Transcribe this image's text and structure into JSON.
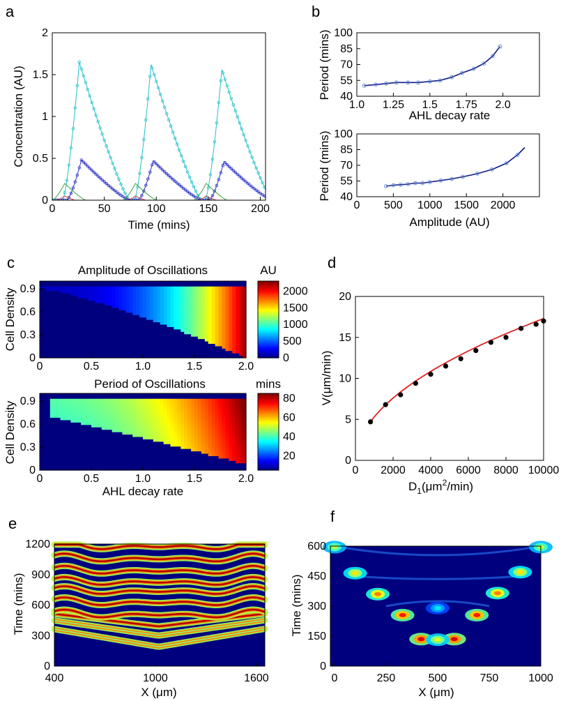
{
  "panels": {
    "a": {
      "letter": "a",
      "chart_data": {
        "type": "line",
        "xlabel": "Time (mins)",
        "ylabel": "Concentration (AU)",
        "xlim": [
          0,
          205
        ],
        "ylim": [
          0,
          2
        ],
        "xticks": [
          "0",
          "50",
          "100",
          "150",
          "200"
        ],
        "yticks": [
          "0",
          "0.5",
          "1",
          "1.5",
          "2"
        ],
        "series": [
          {
            "name": "cyan",
            "color": "#22c0c8",
            "peaks": [
              [
                26,
                1.65
              ],
              [
                95,
                1.62
              ],
              [
                163,
                1.56
              ]
            ]
          },
          {
            "name": "blue",
            "color": "#2830c8",
            "peaks": [
              [
                28,
                0.48
              ],
              [
                97,
                0.47
              ],
              [
                165,
                0.46
              ]
            ]
          },
          {
            "name": "green",
            "color": "#3aa040",
            "peaks": [
              [
                12,
                0.2
              ],
              [
                80,
                0.2
              ],
              [
                148,
                0.2
              ]
            ]
          },
          {
            "name": "red",
            "color": "#d04040",
            "peaks": [
              [
                12,
                0.05
              ],
              [
                80,
                0.05
              ],
              [
                148,
                0.05
              ]
            ]
          }
        ]
      }
    },
    "b": {
      "letter": "b",
      "top": {
        "chart_data": {
          "type": "line",
          "xlabel": "AHL decay rate",
          "ylabel": "Period (mins)",
          "xlim": [
            1.0,
            2.25
          ],
          "ylim": [
            40,
            100
          ],
          "xticks": [
            "1.0",
            "1.25",
            "1.5",
            "1.75",
            "2.0"
          ],
          "yticks": [
            "40",
            "55",
            "70",
            "85",
            "100"
          ],
          "x": [
            1.05,
            1.13,
            1.2,
            1.27,
            1.35,
            1.42,
            1.5,
            1.57,
            1.65,
            1.72,
            1.8,
            1.87,
            1.93,
            1.98
          ],
          "y": [
            50,
            51,
            52,
            53,
            53,
            53,
            54,
            55,
            58,
            62,
            66,
            71,
            78,
            87
          ]
        }
      },
      "bottom": {
        "chart_data": {
          "type": "line",
          "xlabel": "Amplitude (AU)",
          "ylabel": "Period (mins)",
          "xlim": [
            0,
            2500
          ],
          "ylim": [
            40,
            100
          ],
          "xticks": [
            "0",
            "500",
            "1000",
            "1500",
            "2000"
          ],
          "yticks": [
            "40",
            "55",
            "70",
            "85",
            "100"
          ],
          "x": [
            400,
            500,
            600,
            700,
            800,
            900,
            1000,
            1150,
            1300,
            1450,
            1650,
            1850,
            2050,
            2200,
            2300
          ],
          "y": [
            50,
            51,
            51.5,
            52,
            53,
            53,
            54,
            55.5,
            57,
            59,
            62,
            66,
            72,
            80,
            87
          ]
        }
      }
    },
    "c": {
      "letter": "c",
      "top": {
        "chart_data": {
          "type": "heatmap",
          "title": "Amplitude of Oscillations",
          "colorbar_label": "AU",
          "ylabel": "Cell Density",
          "xlim": [
            0,
            2.0
          ],
          "ylim": [
            0,
            1.0
          ],
          "xticks": [
            "0",
            "0.5",
            "1.0",
            "1.5",
            "2.0"
          ],
          "yticks": [
            "0",
            "0.3",
            "0.6",
            "0.9"
          ],
          "cbar_ticks": [
            "0",
            "500",
            "1000",
            "1500",
            "2000"
          ],
          "cmax": 2300
        }
      },
      "bottom": {
        "chart_data": {
          "type": "heatmap",
          "title": "Period of Oscillations",
          "colorbar_label": "mins",
          "ylabel": "Cell Density",
          "xlabel": "AHL decay rate",
          "xlim": [
            0,
            2.0
          ],
          "ylim": [
            0,
            1.0
          ],
          "xticks": [
            "0",
            "0.5",
            "1.0",
            "1.5",
            "2.0"
          ],
          "yticks": [
            "0",
            "0.3",
            "0.6",
            "0.9"
          ],
          "cbar_ticks": [
            "20",
            "40",
            "60",
            "80"
          ],
          "cmin": 5,
          "cmax": 85
        }
      }
    },
    "d": {
      "letter": "d",
      "chart_data": {
        "type": "scatter",
        "xlabel_main": "D",
        "xlabel_sub": "1",
        "xlabel_rest": "(μm",
        "xlabel_sup": "2",
        "xlabel_end": "/min)",
        "ylabel": "V(μm/min)",
        "xlim": [
          0,
          10000
        ],
        "ylim": [
          0,
          20
        ],
        "xticks": [
          "0",
          "2000",
          "4000",
          "6000",
          "8000",
          "10000"
        ],
        "yticks": [
          "0",
          "5",
          "10",
          "15",
          "20"
        ],
        "x": [
          800,
          1600,
          2400,
          3200,
          4000,
          4800,
          5600,
          6400,
          7200,
          8000,
          8800,
          9600,
          10000
        ],
        "y": [
          4.7,
          6.8,
          8.0,
          9.4,
          10.5,
          11.5,
          12.4,
          13.4,
          14.4,
          15.0,
          16.1,
          16.6,
          17.0
        ],
        "fit_color": "#e02020"
      }
    },
    "e": {
      "letter": "e",
      "chart_data": {
        "type": "heatmap",
        "xlabel": "X (μm)",
        "ylabel": "Time (mins)",
        "xlim": [
          400,
          1650
        ],
        "ylim": [
          0,
          1200
        ],
        "xticks": [
          "400",
          "1000",
          "1600"
        ],
        "yticks": [
          "0",
          "300",
          "600",
          "900",
          "1200"
        ]
      }
    },
    "f": {
      "letter": "f",
      "chart_data": {
        "type": "heatmap",
        "xlabel": "X (μm)",
        "ylabel": "Time (mins)",
        "xlim": [
          -20,
          1000
        ],
        "ylim": [
          0,
          600
        ],
        "xticks": [
          "0",
          "250",
          "500",
          "750",
          "1000"
        ],
        "yticks": [
          "0",
          "150",
          "300",
          "450",
          "600"
        ]
      }
    }
  }
}
